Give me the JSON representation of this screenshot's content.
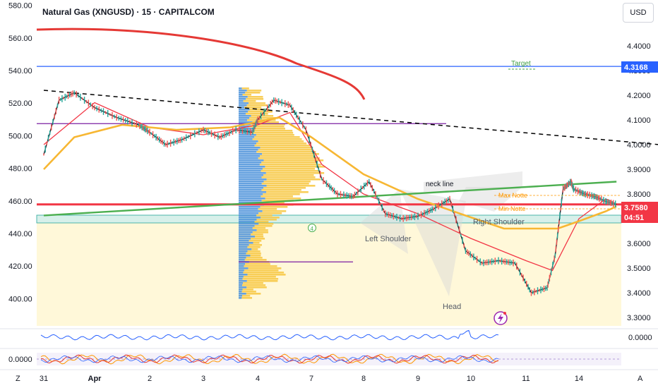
{
  "header": {
    "title": "Natural Gas (XNGUSD) · 15 · CAPITALCOM",
    "currency": "USD"
  },
  "chart_data": {
    "type": "line",
    "left_axis": {
      "ticks": [
        "580.00",
        "560.00",
        "540.00",
        "520.00",
        "500.00",
        "480.00",
        "460.00",
        "440.00",
        "420.00",
        "400.00"
      ],
      "range": [
        400,
        580
      ]
    },
    "right_axis": {
      "ticks": [
        "4.4000",
        "4.3000",
        "4.2000",
        "4.1000",
        "4.0000",
        "3.9000",
        "3.8000",
        "3.7000",
        "3.6000",
        "3.5000",
        "3.4000",
        "3.3000"
      ],
      "range": [
        3.3,
        4.45
      ]
    },
    "x_axis": {
      "ticks": [
        "31",
        "Apr",
        "2",
        "3",
        "4",
        "7",
        "8",
        "9",
        "10",
        "11",
        "14"
      ],
      "letters": [
        "Z",
        "A"
      ]
    },
    "price_label": {
      "value": "3.7580",
      "countdown": "04:51",
      "color": "#f23645"
    },
    "target_label": {
      "value": "4.3168",
      "color": "#2962ff"
    },
    "annotations": {
      "target": "Target",
      "neck_line": "neck line",
      "left_shoulder": "Left Shoulder",
      "head": "Head",
      "right_shoulder": "Right Shoulder",
      "max_notte": "Max Notte",
      "min_notte": "Min Notte",
      "circle_four": "4"
    },
    "indicator1": {
      "tick": "0.0000"
    },
    "indicator2": {
      "tick": "0.0000"
    },
    "series": [
      {
        "name": "",
        "color": "#131722",
        "x": [
          0,
          0.3,
          0.6,
          1.0,
          1.4,
          1.8,
          2.0,
          2.3,
          2.6,
          3.0,
          3.3,
          3.6,
          3.9,
          4.0,
          4.3,
          4.6,
          4.9,
          5.2,
          5.5,
          5.8,
          6.1,
          6.4,
          6.7,
          7.0,
          7.3,
          7.6,
          7.9,
          8.2,
          8.5,
          8.8,
          9.1,
          9.4,
          9.55,
          9.7,
          9.85,
          9.9,
          10.1,
          10.3,
          10.5,
          10.7
        ],
        "y": [
          3.96,
          4.18,
          4.21,
          4.15,
          4.11,
          4.08,
          4.05,
          4.0,
          4.02,
          4.06,
          4.03,
          4.06,
          4.05,
          4.1,
          4.18,
          4.16,
          4.06,
          3.86,
          3.8,
          3.79,
          3.85,
          3.72,
          3.7,
          3.71,
          3.74,
          3.78,
          3.57,
          3.52,
          3.53,
          3.52,
          3.4,
          3.42,
          3.55,
          3.82,
          3.85,
          3.82,
          3.8,
          3.79,
          3.77,
          3.758
        ]
      },
      {
        "name": "",
        "color": "#f23645",
        "x": [
          0,
          1,
          2,
          3,
          4,
          4.6,
          5.2,
          6,
          7,
          8,
          9,
          9.5,
          10,
          10.5,
          10.7
        ],
        "y": [
          4.0,
          4.17,
          4.07,
          4.04,
          4.08,
          4.13,
          3.92,
          3.8,
          3.72,
          3.62,
          3.53,
          3.49,
          3.7,
          3.78,
          3.76
        ]
      },
      {
        "name": "",
        "color": "#f7b733",
        "x": [
          0,
          0.6,
          1.5,
          2.5,
          3.5,
          4.4,
          5,
          6,
          7,
          7.8,
          8.6,
          9.6,
          10,
          10.5,
          10.7
        ],
        "y": [
          3.9,
          4.03,
          4.08,
          4.06,
          4.07,
          4.11,
          4.03,
          3.88,
          3.78,
          3.72,
          3.66,
          3.66,
          3.69,
          3.73,
          3.75
        ]
      },
      {
        "name": "",
        "color": "#4caf50",
        "x": [
          0,
          10.7
        ],
        "y": [
          3.713,
          3.85
        ]
      },
      {
        "name": "",
        "color": "#000000",
        "x": [
          0,
          11.5
        ],
        "y": [
          4.22,
          4.0
        ]
      }
    ],
    "horizontal_levels": [
      {
        "value": 4.3168,
        "color": "#2962ff"
      },
      {
        "value": 4.085,
        "color": "#7b1fa2"
      },
      {
        "value": 3.758,
        "color": "#f23645"
      },
      {
        "value": 3.525,
        "color": "#7b1fa2"
      }
    ],
    "grid": false
  }
}
